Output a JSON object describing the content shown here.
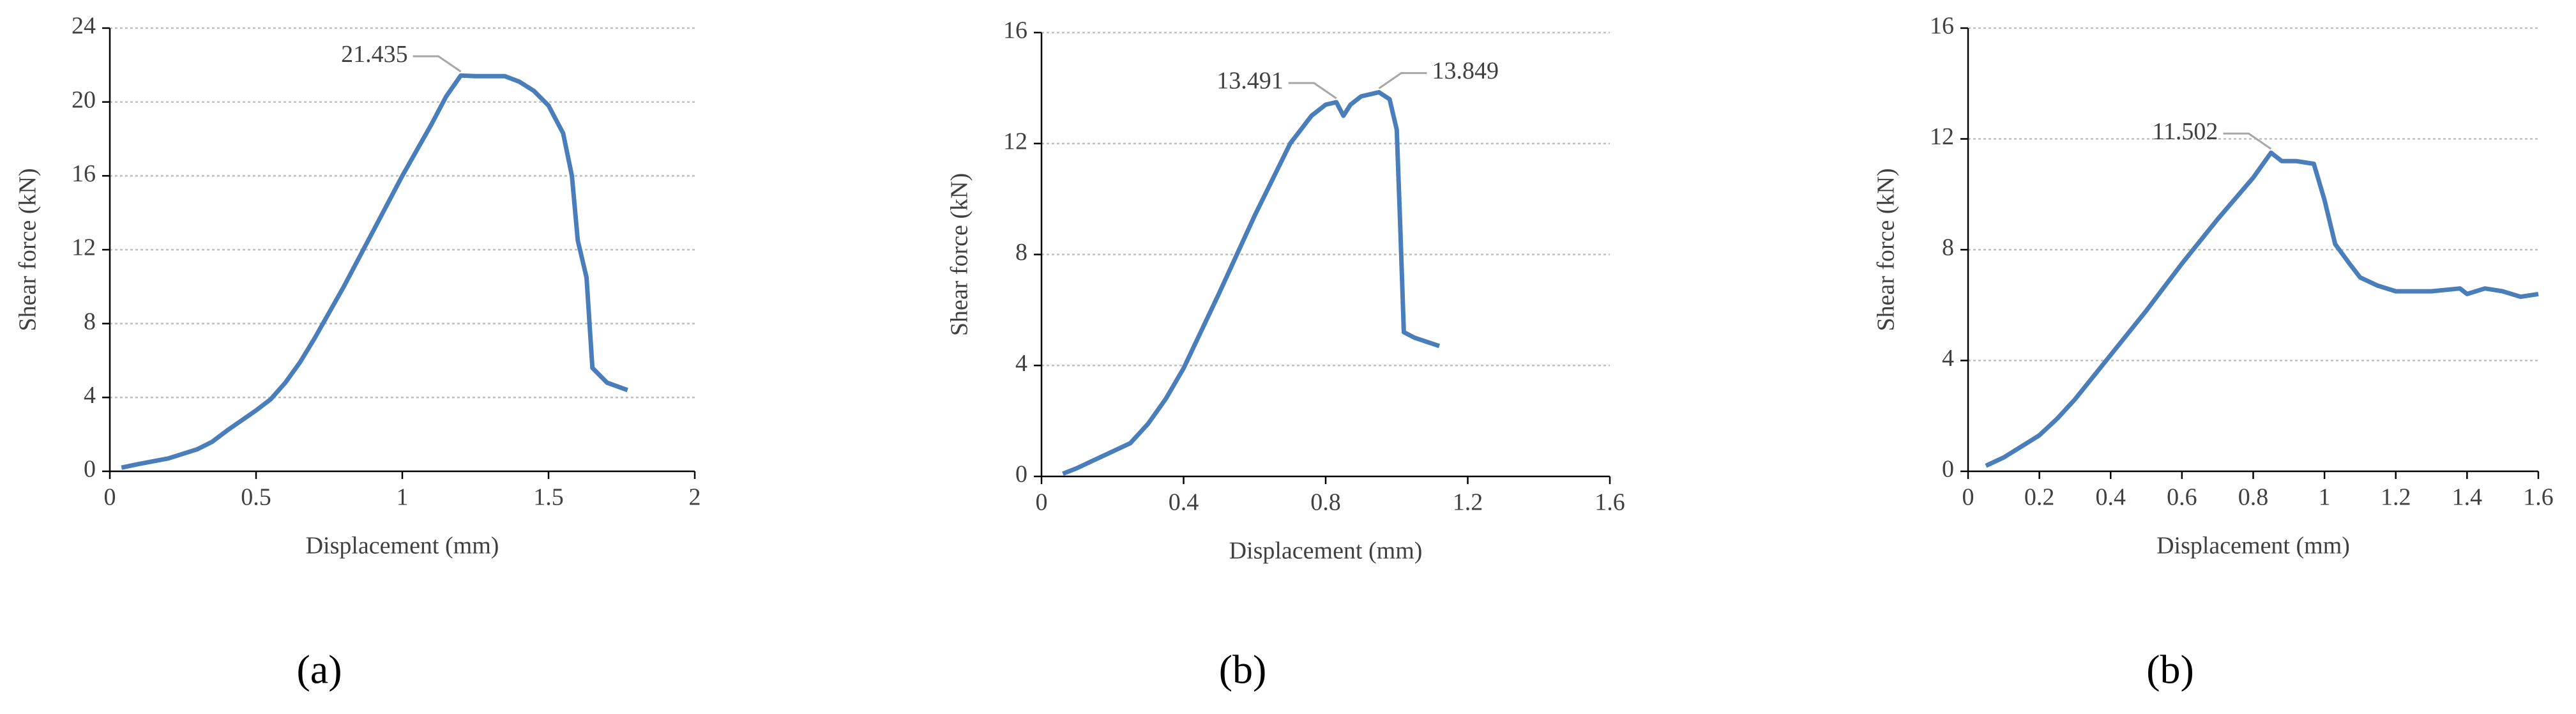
{
  "chart_data": [
    {
      "type": "line",
      "caption": "(a)",
      "xlabel": "Displacement (mm)",
      "ylabel": "Shear force (kN)",
      "color": "#4a7ebb",
      "grid": true,
      "xlim": [
        0,
        2
      ],
      "ylim": [
        0,
        24
      ],
      "xticks": [
        0,
        0.5,
        1,
        1.5,
        2
      ],
      "yticks": [
        0,
        4,
        8,
        12,
        16,
        20,
        24
      ],
      "x": [
        0.04,
        0.1,
        0.2,
        0.3,
        0.35,
        0.4,
        0.5,
        0.55,
        0.6,
        0.65,
        0.7,
        0.8,
        0.9,
        1.0,
        1.1,
        1.15,
        1.2,
        1.25,
        1.3,
        1.35,
        1.4,
        1.45,
        1.5,
        1.55,
        1.58,
        1.6,
        1.63,
        1.65,
        1.7,
        1.77
      ],
      "values": [
        0.2,
        0.4,
        0.7,
        1.2,
        1.6,
        2.2,
        3.3,
        3.9,
        4.8,
        5.9,
        7.2,
        10,
        13,
        16,
        18.8,
        20.3,
        21.435,
        21.4,
        21.4,
        21.4,
        21.1,
        20.6,
        19.8,
        18.3,
        16,
        12.5,
        10.5,
        5.6,
        4.8,
        4.4
      ],
      "annotations": [
        {
          "text": "21.435",
          "x": 1.2,
          "y": 21.435
        }
      ]
    },
    {
      "type": "line",
      "caption": "(b)",
      "xlabel": "Displacement (mm)",
      "ylabel": "Shear force (kN)",
      "color": "#4a7ebb",
      "grid": true,
      "xlim": [
        0,
        1.6
      ],
      "ylim": [
        0,
        16
      ],
      "xticks": [
        0,
        0.4,
        0.8,
        1.2,
        1.6
      ],
      "yticks": [
        0,
        4,
        8,
        12,
        16
      ],
      "x": [
        0.06,
        0.1,
        0.15,
        0.2,
        0.25,
        0.3,
        0.35,
        0.4,
        0.5,
        0.6,
        0.7,
        0.76,
        0.8,
        0.83,
        0.85,
        0.87,
        0.9,
        0.95,
        0.98,
        1.0,
        1.01,
        1.02,
        1.05,
        1.12
      ],
      "values": [
        0.1,
        0.3,
        0.6,
        0.9,
        1.2,
        1.9,
        2.8,
        3.9,
        6.6,
        9.4,
        12,
        13,
        13.4,
        13.491,
        13,
        13.4,
        13.7,
        13.849,
        13.6,
        12.5,
        9,
        5.2,
        5.0,
        4.7
      ],
      "annotations": [
        {
          "text": "13.491",
          "x": 0.83,
          "y": 13.491
        },
        {
          "text": "13.849",
          "x": 0.95,
          "y": 13.849
        }
      ]
    },
    {
      "type": "line",
      "caption": "(b)",
      "xlabel": "Displacement (mm)",
      "ylabel": "Shear force (kN)",
      "color": "#4a7ebb",
      "grid": true,
      "xlim": [
        0,
        1.6
      ],
      "ylim": [
        0,
        16
      ],
      "xticks": [
        0,
        0.2,
        0.4,
        0.6,
        0.8,
        1,
        1.2,
        1.4,
        1.6
      ],
      "yticks": [
        0,
        4,
        8,
        12,
        16
      ],
      "x": [
        0.05,
        0.1,
        0.15,
        0.2,
        0.25,
        0.3,
        0.4,
        0.5,
        0.6,
        0.7,
        0.8,
        0.85,
        0.88,
        0.92,
        0.97,
        1.0,
        1.03,
        1.07,
        1.1,
        1.15,
        1.2,
        1.3,
        1.38,
        1.4,
        1.45,
        1.5,
        1.55,
        1.6
      ],
      "values": [
        0.2,
        0.5,
        0.9,
        1.3,
        1.9,
        2.6,
        4.2,
        5.8,
        7.5,
        9.1,
        10.6,
        11.502,
        11.2,
        11.2,
        11.1,
        9.8,
        8.2,
        7.5,
        7.0,
        6.7,
        6.5,
        6.5,
        6.6,
        6.4,
        6.6,
        6.5,
        6.3,
        6.4
      ],
      "annotations": [
        {
          "text": "11.502",
          "x": 0.85,
          "y": 11.502
        }
      ]
    }
  ]
}
